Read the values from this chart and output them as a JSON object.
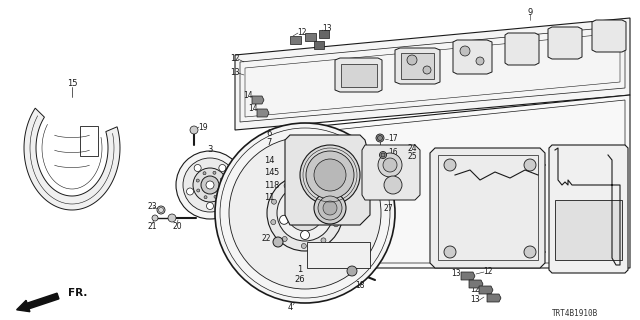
{
  "fig_width": 6.4,
  "fig_height": 3.2,
  "dpi": 100,
  "bg_color": "#ffffff",
  "line_color": "#1a1a1a",
  "part_number_text": "TRT4B1910B",
  "fr_arrow_text": "FR."
}
